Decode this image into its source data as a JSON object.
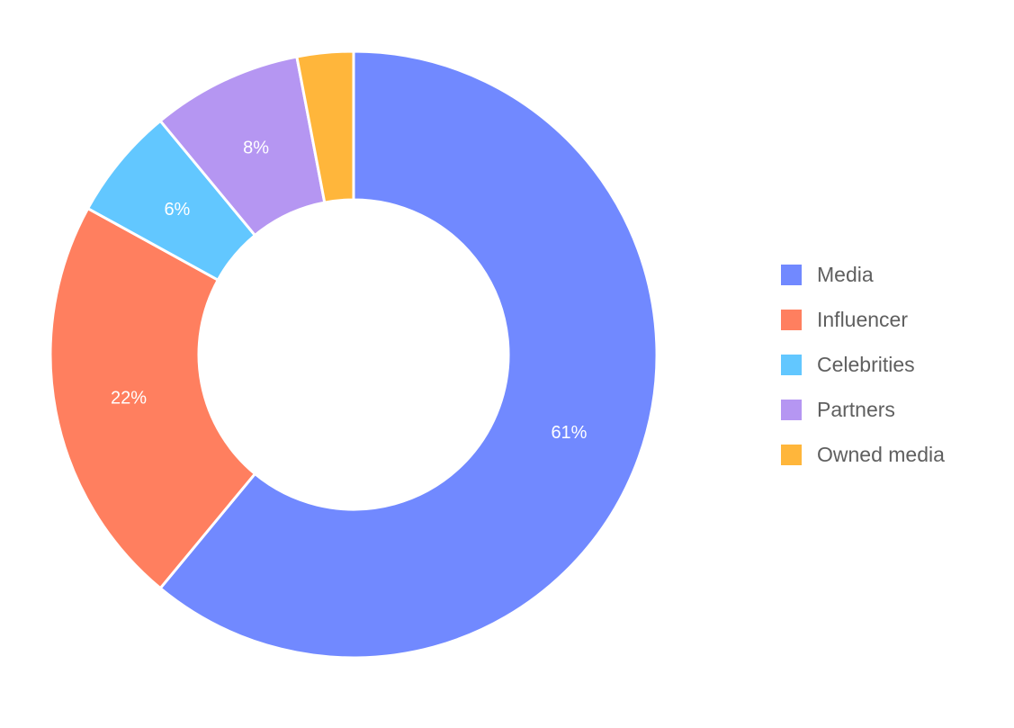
{
  "chart_data": {
    "type": "pie",
    "subtype": "donut",
    "title": "",
    "categories": [
      "Media",
      "Influencer",
      "Celebrities",
      "Partners",
      "Owned media"
    ],
    "values": [
      61,
      22,
      6,
      8,
      3
    ],
    "labels": [
      "61%",
      "22%",
      "6%",
      "8%",
      ""
    ],
    "colors": [
      "#7189ff",
      "#ff7f5f",
      "#62c7ff",
      "#b596f2",
      "#ffb63b"
    ],
    "legend_position": "right",
    "start_angle": "top, clockwise"
  },
  "legend": {
    "items": [
      {
        "label": "Media",
        "color": "#7189ff"
      },
      {
        "label": "Influencer",
        "color": "#ff7f5f"
      },
      {
        "label": "Celebrities",
        "color": "#62c7ff"
      },
      {
        "label": "Partners",
        "color": "#b596f2"
      },
      {
        "label": "Owned media",
        "color": "#ffb63b"
      }
    ]
  }
}
